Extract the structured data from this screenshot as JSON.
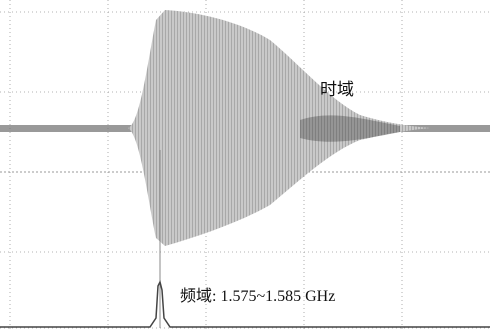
{
  "labels": {
    "time_domain": "时域",
    "frequency_domain": "频域: 1.575~1.585 GHz"
  }
}
